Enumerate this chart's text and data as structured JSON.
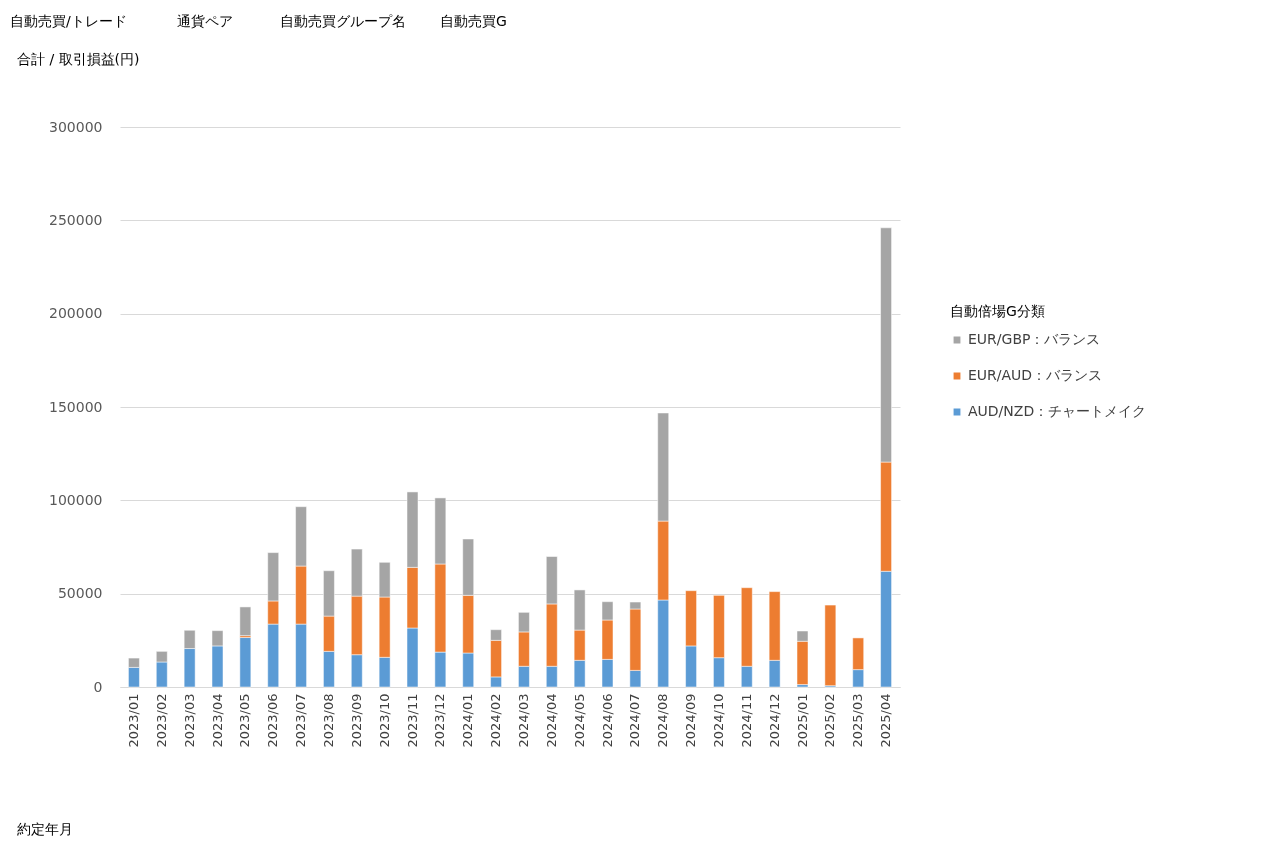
{
  "chart_data": {
    "type": "bar",
    "stacked": true,
    "ylabel": "合計 / 取引損益(円)",
    "legend_title": "自動倍場G分類",
    "annotations": [
      "自動売買/トレード",
      "通貨ペア",
      "自動売買グループ名",
      "自動売買G",
      "約定年月"
    ],
    "categories": [
      "2023/01",
      "2023/02",
      "2023/03",
      "2023/04",
      "2023/05",
      "2023/06",
      "2023/07",
      "2023/08",
      "2023/09",
      "2023/10",
      "2023/11",
      "2023/12",
      "2024/01",
      "2024/02",
      "2024/03",
      "2024/04",
      "2024/05",
      "2024/06",
      "2024/07",
      "2024/08",
      "2024/09",
      "2024/10",
      "2024/11",
      "2024/12",
      "2025/01",
      "2025/02",
      "2025/03",
      "2025/04"
    ],
    "series": [
      {
        "name": "AUD/NZD：チャートメイク",
        "color": "#5b9bd5",
        "values": [
          10500,
          13400,
          20600,
          22000,
          26500,
          33700,
          33700,
          19100,
          17300,
          15900,
          31600,
          18700,
          18200,
          5400,
          11100,
          11100,
          14300,
          14800,
          8900,
          46600,
          22000,
          15700,
          11100,
          14300,
          1300,
          700,
          9300,
          62000
        ]
      },
      {
        "name": "EUR/AUD：バランス",
        "color": "#ed7d31",
        "values": [
          null,
          null,
          null,
          null,
          1000,
          12400,
          31100,
          18900,
          31400,
          32300,
          32500,
          47200,
          30900,
          19600,
          18400,
          33400,
          16200,
          21100,
          32900,
          42300,
          29600,
          33400,
          42100,
          36800,
          23200,
          43200,
          17000,
          58500
        ]
      },
      {
        "name": "EUR/GBP：バランス",
        "color": "#a5a5a5",
        "values": [
          5000,
          5700,
          9800,
          8200,
          15400,
          25900,
          31800,
          24300,
          25200,
          18600,
          40400,
          35400,
          30200,
          5700,
          10500,
          25400,
          21500,
          9800,
          3700,
          57900,
          null,
          null,
          null,
          null,
          5500,
          null,
          null,
          125500
        ]
      }
    ],
    "ylim": [
      0,
      300000
    ],
    "yticks": [
      0,
      50000,
      100000,
      150000,
      200000,
      250000,
      300000
    ],
    "grid": "y",
    "legend": "right"
  }
}
